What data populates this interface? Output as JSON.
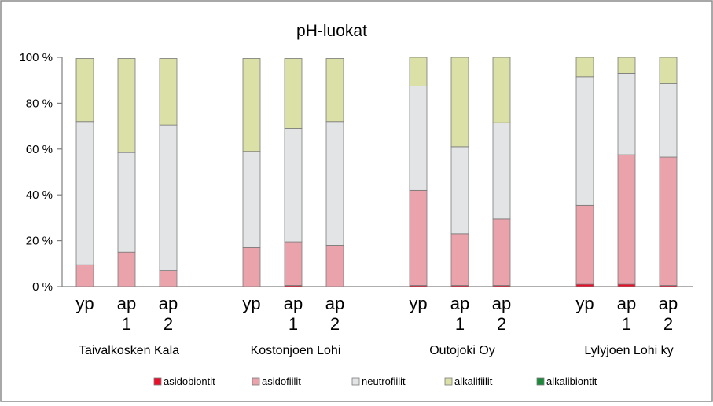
{
  "chart_data": {
    "type": "bar",
    "stacked": true,
    "percent": true,
    "title": "pH-luokat",
    "ylim": [
      0,
      100
    ],
    "yticks": [
      "0 %",
      "20 %",
      "40 %",
      "60 %",
      "80 %",
      "100 %"
    ],
    "ytick_values": [
      0,
      20,
      40,
      60,
      80,
      100
    ],
    "grid": false,
    "legend_position": "bottom",
    "groups": [
      {
        "name": "Taivalkosken Kala",
        "bars": [
          {
            "label": [
              "yp"
            ],
            "values": [
              0,
              9.5,
              62.5,
              27.5,
              0
            ]
          },
          {
            "label": [
              "ap",
              "1"
            ],
            "values": [
              0,
              15,
              43.5,
              41,
              0
            ]
          },
          {
            "label": [
              "ap",
              "2"
            ],
            "values": [
              0,
              7,
              63.5,
              29,
              0
            ]
          }
        ]
      },
      {
        "name": "Kostonjoen Lohi",
        "bars": [
          {
            "label": [
              "yp"
            ],
            "values": [
              0,
              17,
              42,
              40.5,
              0
            ]
          },
          {
            "label": [
              "ap",
              "1"
            ],
            "values": [
              0.5,
              19,
              49.5,
              30.5,
              0
            ]
          },
          {
            "label": [
              "ap",
              "2"
            ],
            "values": [
              0,
              18,
              54,
              27.5,
              0
            ]
          }
        ]
      },
      {
        "name": "Outojoki Oy",
        "bars": [
          {
            "label": [
              "yp"
            ],
            "values": [
              0.5,
              41.5,
              45.5,
              12.5,
              0
            ]
          },
          {
            "label": [
              "ap",
              "1"
            ],
            "values": [
              0.5,
              22.5,
              38,
              39,
              0
            ]
          },
          {
            "label": [
              "ap",
              "2"
            ],
            "values": [
              0.5,
              29,
              42,
              28.5,
              0
            ]
          }
        ]
      },
      {
        "name": "Lylyjoen Lohi ky",
        "bars": [
          {
            "label": [
              "yp"
            ],
            "values": [
              1,
              34.5,
              56,
              8.5,
              0
            ]
          },
          {
            "label": [
              "ap",
              "1"
            ],
            "values": [
              1,
              56.5,
              35.5,
              7,
              0
            ]
          },
          {
            "label": [
              "ap",
              "2"
            ],
            "values": [
              0.5,
              56,
              32,
              11.5,
              0
            ]
          }
        ]
      }
    ],
    "series": [
      {
        "name": "asidobiontit",
        "color": "#e8102a"
      },
      {
        "name": "asidofiilit",
        "color": "#eba3ab"
      },
      {
        "name": "neutrofiilit",
        "color": "#e3e4e6"
      },
      {
        "name": "alkalifiilit",
        "color": "#dbe0a6"
      },
      {
        "name": "alkalibiontit",
        "color": "#1c8a3a"
      }
    ]
  }
}
